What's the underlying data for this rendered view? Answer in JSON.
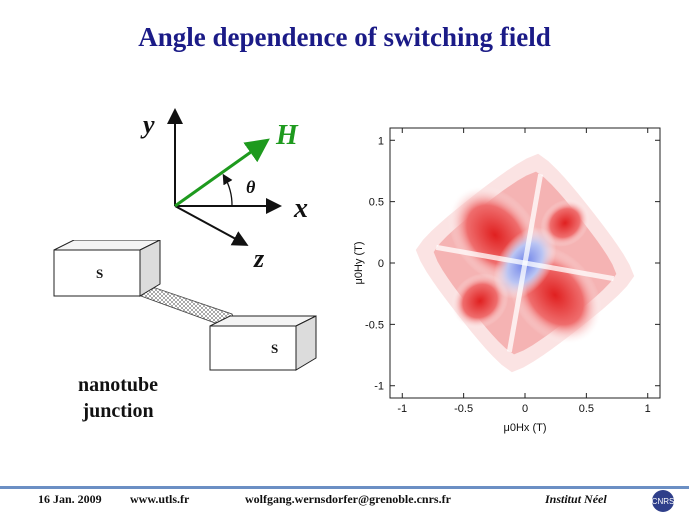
{
  "slide": {
    "title": "Angle dependence of switching field"
  },
  "coordinate_diagram": {
    "y_label": "y",
    "x_label": "x",
    "z_label": "z",
    "field_label": "H",
    "angle_label": "θ",
    "field_color": "#1e9a1e"
  },
  "device": {
    "left_contact_label": "S",
    "right_contact_label": "S",
    "caption_line1": "nanotube",
    "caption_line2": "junction"
  },
  "plot": {
    "xlabel": "μ0Hx (T)",
    "ylabel": "μ0Hy (T)",
    "x_ticks": [
      "-1",
      "-0.5",
      "0",
      "0.5",
      "1"
    ],
    "y_ticks": [
      "1",
      "0.5",
      "0",
      "-0.5",
      "-1"
    ],
    "xlim": [
      -1.1,
      1.1
    ],
    "ylim": [
      -1.1,
      1.1
    ],
    "colors": {
      "high": "#e02020",
      "low": "#5a6fe0",
      "mid": "#ffffff"
    }
  },
  "footer": {
    "date": "16 Jan. 2009",
    "url": "www.utls.fr",
    "email": "wolfgang.wernsdorfer@grenoble.cnrs.fr",
    "institute": "Institut Néel",
    "logo_text": "CNRS"
  }
}
